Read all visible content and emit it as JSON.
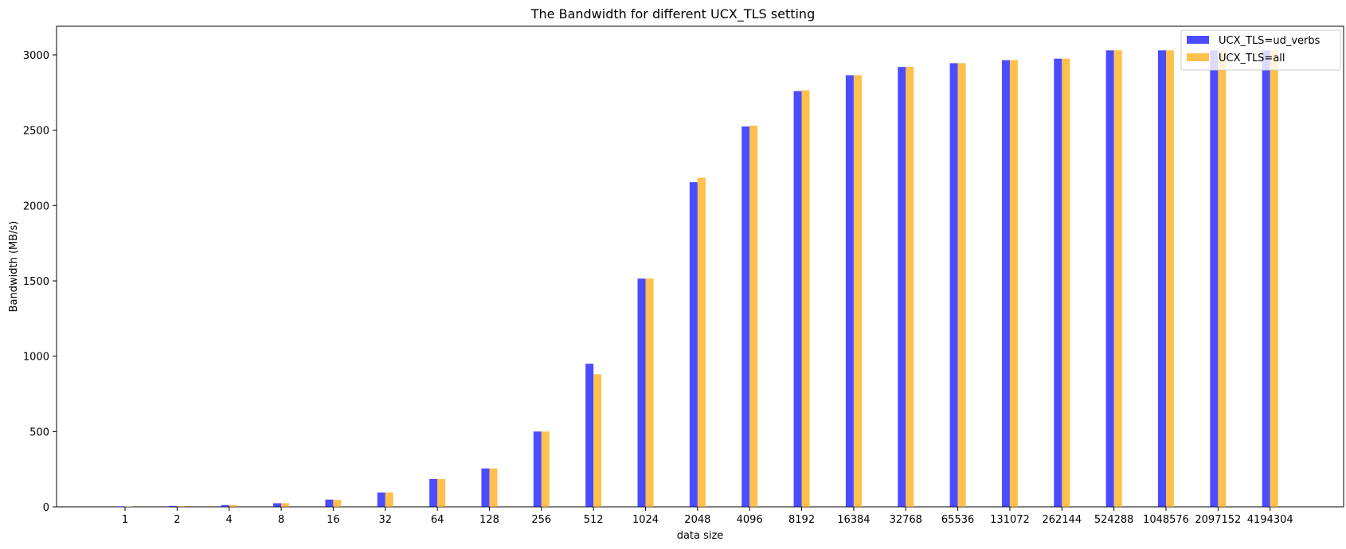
{
  "chart_data": {
    "type": "bar",
    "title": "The Bandwidth for different UCX_TLS setting",
    "xlabel": "data size",
    "ylabel": "Bandwidth (MB/s)",
    "ylim": [
      0,
      3190
    ],
    "yticks": [
      0,
      500,
      1000,
      1500,
      2000,
      2500,
      3000
    ],
    "grid": false,
    "legend_position": "top-right",
    "categories": [
      "1",
      "2",
      "4",
      "8",
      "16",
      "32",
      "64",
      "128",
      "256",
      "512",
      "1024",
      "2048",
      "4096",
      "8192",
      "16384",
      "32768",
      "65536",
      "131072",
      "262144",
      "524288",
      "1048576",
      "2097152",
      "4194304"
    ],
    "series": [
      {
        "name": "UCX_TLS=ud_verbs",
        "color": "#0000ff",
        "values": [
          3,
          6,
          12,
          24,
          48,
          95,
          185,
          255,
          500,
          950,
          1515,
          2155,
          2525,
          2760,
          2865,
          2920,
          2945,
          2965,
          2975,
          3030,
          3030,
          3030,
          3030
        ]
      },
      {
        "name": "UCX_TLS=all",
        "color": "#ffa500",
        "values": [
          3,
          6,
          12,
          24,
          46,
          95,
          185,
          255,
          500,
          880,
          1515,
          2185,
          2530,
          2765,
          2865,
          2920,
          2945,
          2965,
          2975,
          3030,
          3030,
          3030,
          3030
        ]
      }
    ]
  }
}
